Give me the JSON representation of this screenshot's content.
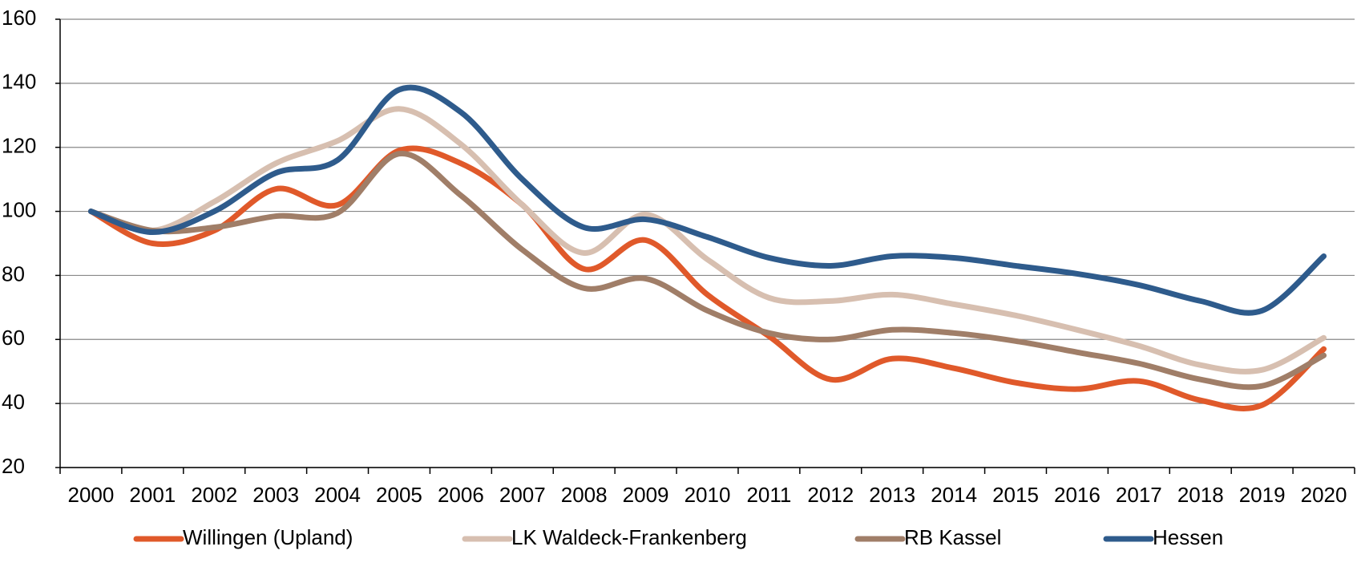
{
  "chart_data": {
    "type": "line",
    "categories": [
      "2000",
      "2001",
      "2002",
      "2003",
      "2004",
      "2005",
      "2006",
      "2007",
      "2008",
      "2009",
      "2010",
      "2011",
      "2012",
      "2013",
      "2014",
      "2015",
      "2016",
      "2017",
      "2018",
      "2019",
      "2020"
    ],
    "series": [
      {
        "name": "Willingen (Upland)",
        "color": "#e0592a",
        "values": [
          100,
          90,
          94,
          107,
          102,
          119,
          115,
          102,
          82,
          91,
          74,
          61,
          47.5,
          54,
          51,
          46.5,
          44.5,
          47,
          41,
          39.5,
          57
        ]
      },
      {
        "name": "LK Waldeck-Frankenberg",
        "color": "#d7bfb0",
        "values": [
          100,
          94,
          103,
          115,
          122,
          132,
          121,
          102,
          87,
          99,
          85,
          73,
          72,
          74,
          71,
          67.5,
          63,
          58,
          52,
          50.5,
          60.5
        ]
      },
      {
        "name": "RB Kassel",
        "color": "#a07e68",
        "values": [
          100,
          94,
          95,
          98.5,
          99.5,
          118,
          105,
          88,
          76,
          79,
          69,
          62,
          60,
          63,
          62,
          59.5,
          56,
          52.5,
          47.5,
          45.5,
          55
        ]
      },
      {
        "name": "Hessen",
        "color": "#2e5b8c",
        "values": [
          100,
          93.5,
          100,
          112,
          116,
          138,
          131,
          110,
          95,
          97.5,
          92,
          85.5,
          83,
          86,
          85.5,
          83,
          80.5,
          77,
          72,
          69,
          86
        ]
      }
    ],
    "ylim": [
      20,
      160
    ],
    "yticks": [
      20,
      40,
      60,
      80,
      100,
      120,
      140,
      160
    ],
    "grid": true,
    "legend": "bottom"
  }
}
